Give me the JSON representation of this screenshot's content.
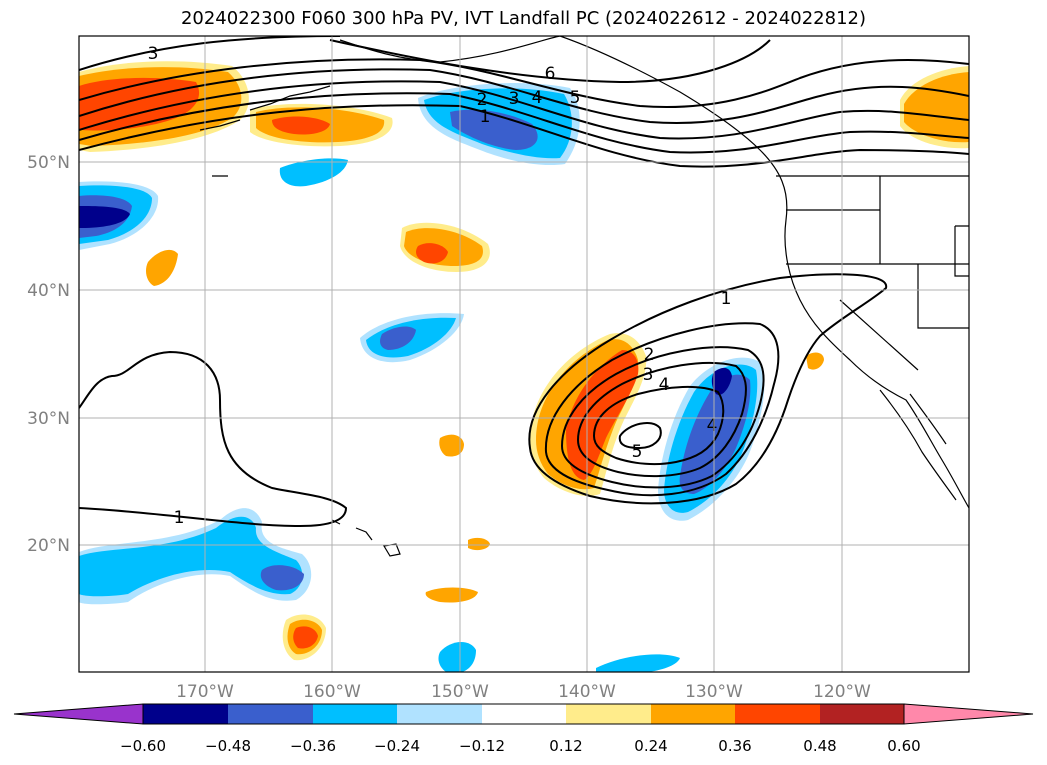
{
  "title": "2024022300 F060 300 hPa PV, IVT Landfall PC (2024022612 - 2024022812)",
  "map": {
    "lon_labels": [
      "170°W",
      "160°W",
      "150°W",
      "140°W",
      "130°W",
      "120°W"
    ],
    "lat_labels": [
      "50°N",
      "40°N",
      "30°N",
      "20°N"
    ],
    "axis_color": "#808080"
  },
  "contour_labels": [
    {
      "text": "3"
    },
    {
      "text": "6"
    },
    {
      "text": "5"
    },
    {
      "text": "4"
    },
    {
      "text": "3"
    },
    {
      "text": "2"
    },
    {
      "text": "1"
    },
    {
      "text": "1"
    },
    {
      "text": "2"
    },
    {
      "text": "3"
    },
    {
      "text": "4"
    },
    {
      "text": "4"
    },
    {
      "text": "5"
    },
    {
      "text": "1"
    }
  ],
  "colorbar": {
    "tick_labels": [
      "−0.60",
      "−0.48",
      "−0.36",
      "−0.24",
      "−0.12",
      "0.12",
      "0.24",
      "0.36",
      "0.48",
      "0.60"
    ],
    "colors": [
      "#9933cc",
      "#00008b",
      "#3a5fcd",
      "#00bfff",
      "#b0e2ff",
      "#ffffff",
      "#ffec8b",
      "#ffa500",
      "#ff4500",
      "#b22222",
      "#ff88aa"
    ]
  }
}
